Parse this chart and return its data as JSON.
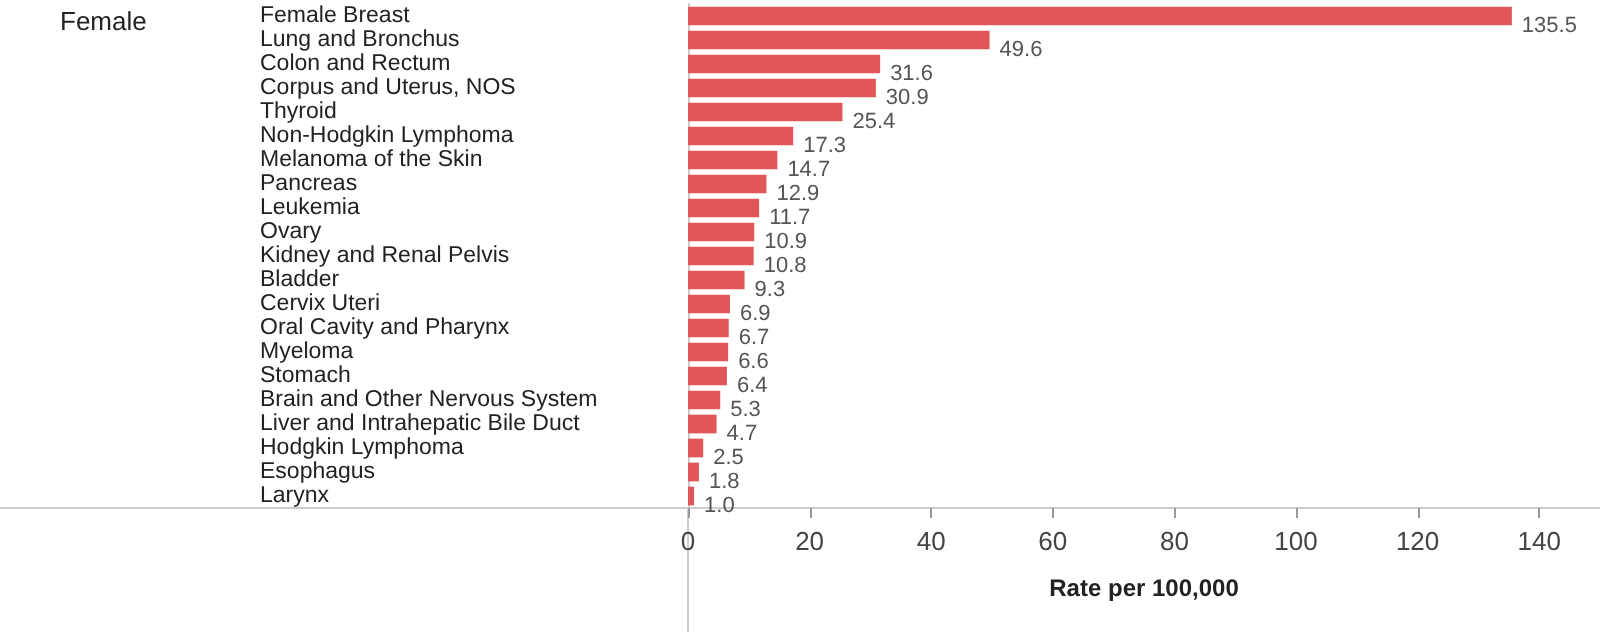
{
  "chart_data": {
    "type": "bar",
    "orientation": "horizontal",
    "ylabel": "Female",
    "xlabel": "Rate per 100,000",
    "categories": [
      "Female Breast",
      "Lung and Bronchus",
      "Colon and Rectum",
      "Corpus and Uterus, NOS",
      "Thyroid",
      "Non-Hodgkin Lymphoma",
      "Melanoma of the Skin",
      "Pancreas",
      "Leukemia",
      "Ovary",
      "Kidney and Renal Pelvis",
      "Bladder",
      "Cervix Uteri",
      "Oral Cavity and Pharynx",
      "Myeloma",
      "Stomach",
      "Brain and Other Nervous System",
      "Liver and Intrahepatic Bile Duct",
      "Hodgkin Lymphoma",
      "Esophagus",
      "Larynx"
    ],
    "values": [
      135.5,
      49.6,
      31.6,
      30.9,
      25.4,
      17.3,
      14.7,
      12.9,
      11.7,
      10.9,
      10.8,
      9.3,
      6.9,
      6.7,
      6.6,
      6.4,
      5.3,
      4.7,
      2.5,
      1.8,
      1.0
    ],
    "value_labels": [
      "135.5",
      "49.6",
      "31.6",
      "30.9",
      "25.4",
      "17.3",
      "14.7",
      "12.9",
      "11.7",
      "10.9",
      "10.8",
      "9.3",
      "6.9",
      "6.7",
      "6.6",
      "6.4",
      "5.3",
      "4.7",
      "2.5",
      "1.8",
      "1.0"
    ],
    "color": "#e15759",
    "xlim": [
      0,
      150
    ],
    "xticks": [
      0,
      20,
      40,
      60,
      80,
      100,
      120,
      140
    ],
    "grid": false
  }
}
